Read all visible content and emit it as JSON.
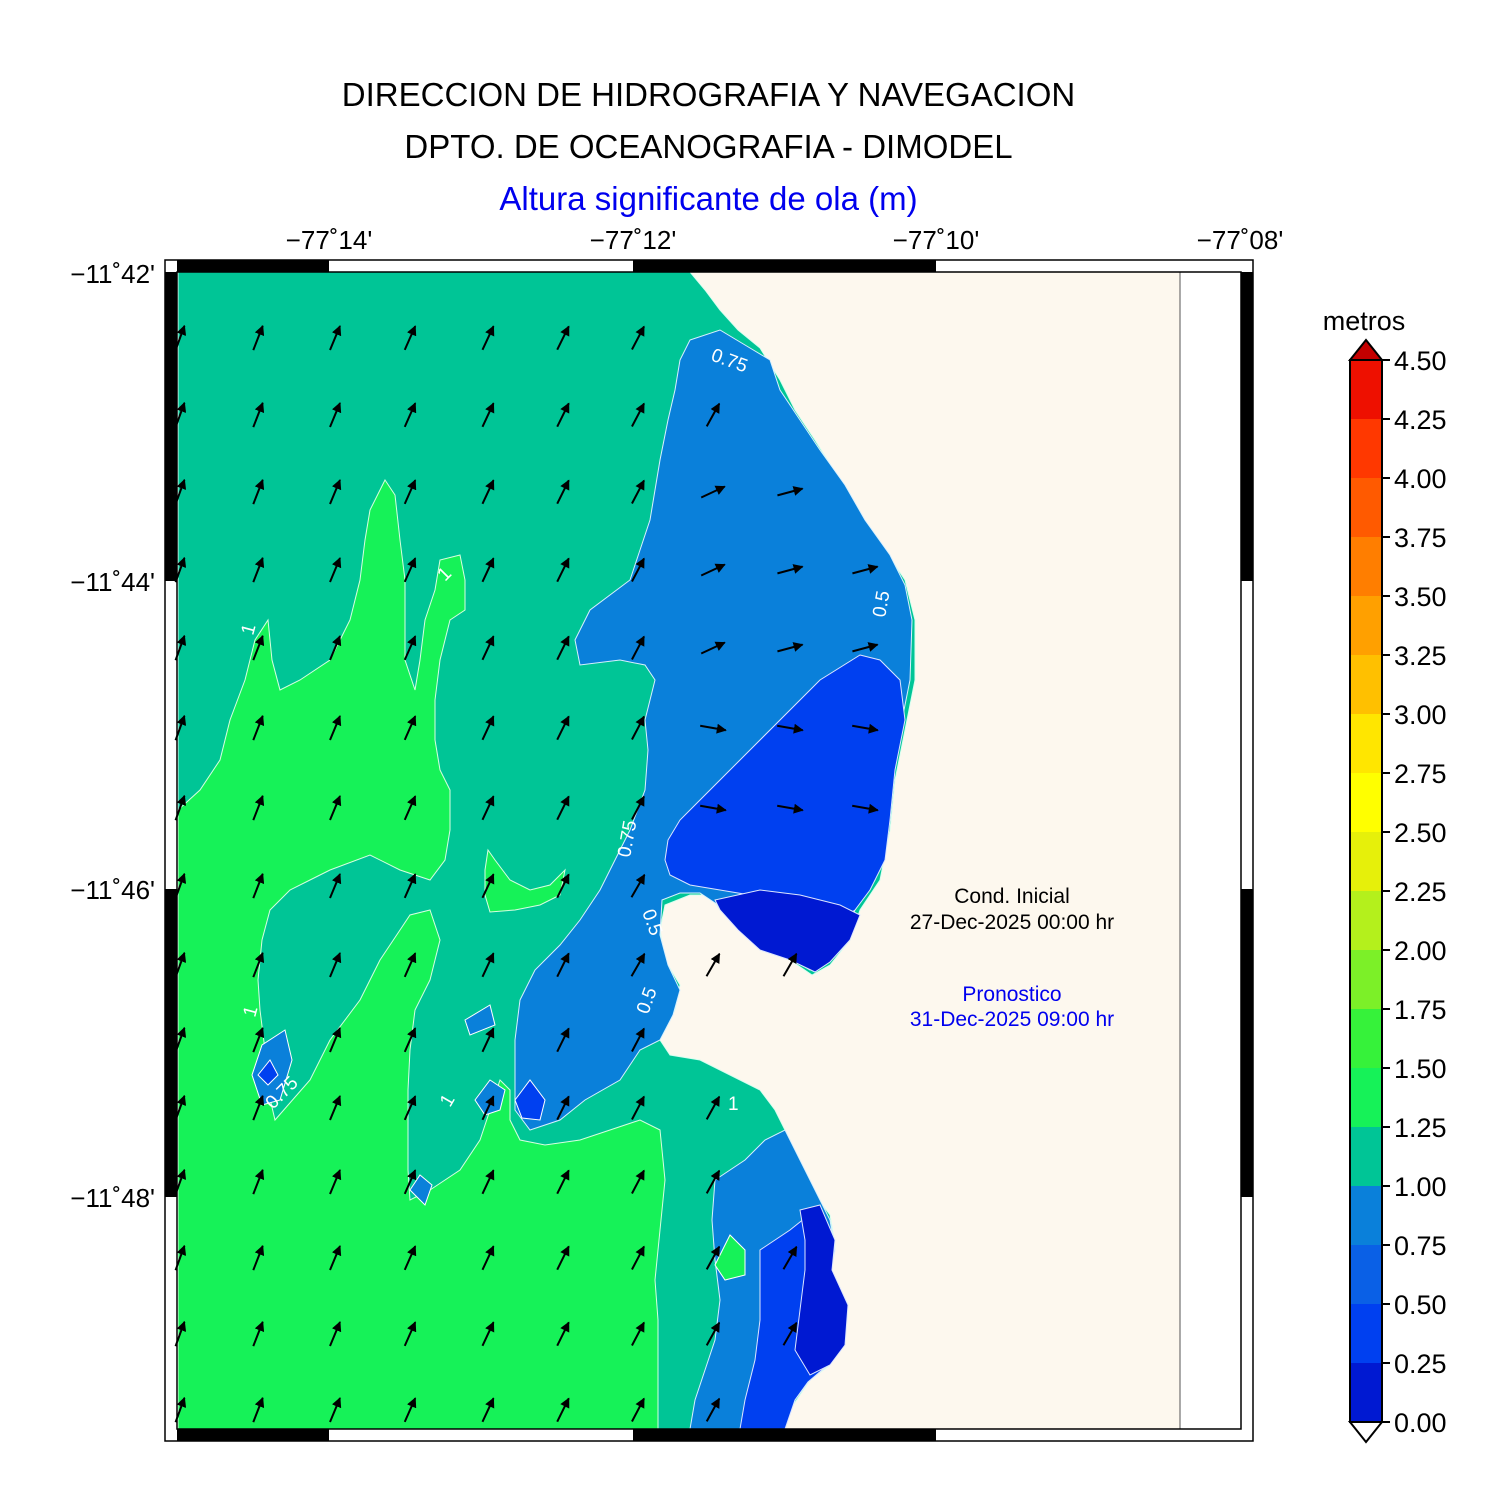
{
  "header": {
    "line1": "DIRECCION DE HIDROGRAFIA Y NAVEGACION",
    "line2": "DPTO. DE OCEANOGRAFIA - DIMODEL",
    "variable": "Altura significante de ola (m)"
  },
  "axes": {
    "lon_ticks": [
      "−77˚14'",
      "−77˚12'",
      "−77˚10'",
      "−77˚08'"
    ],
    "lat_ticks": [
      "−11˚42'",
      "−11˚44'",
      "−11˚46'",
      "−11˚48'"
    ]
  },
  "colorbar": {
    "unit": "metros",
    "levels": [
      "0.00",
      "0.25",
      "0.50",
      "0.75",
      "1.00",
      "1.25",
      "1.50",
      "1.75",
      "2.00",
      "2.25",
      "2.50",
      "2.75",
      "3.00",
      "3.25",
      "3.50",
      "3.75",
      "4.00",
      "4.25",
      "4.50"
    ],
    "colors": [
      "#0019d2",
      "#0040f0",
      "#0a60e6",
      "#0a80da",
      "#00c596",
      "#16f258",
      "#36f23a",
      "#7cf028",
      "#b4f01c",
      "#e6f00a",
      "#ffff00",
      "#ffe600",
      "#ffc000",
      "#ffa000",
      "#ff7e00",
      "#ff5a00",
      "#ff3800",
      "#ee1000",
      "#c40000"
    ]
  },
  "contour_labels": [
    "0.75",
    "0.75",
    "0.75",
    "0.5",
    "1",
    "1",
    "1",
    "1",
    "1",
    "0.5",
    "0.5"
  ],
  "legend": {
    "initial_label": "Cond. Inicial",
    "initial_date": "27-Dec-2025 00:00 hr",
    "forecast_label": "Pronostico",
    "forecast_date": "31-Dec-2025 09:00 hr"
  },
  "map_colors": {
    "land": "#fdf8ee",
    "wave_dir_arrow": "#000000"
  }
}
